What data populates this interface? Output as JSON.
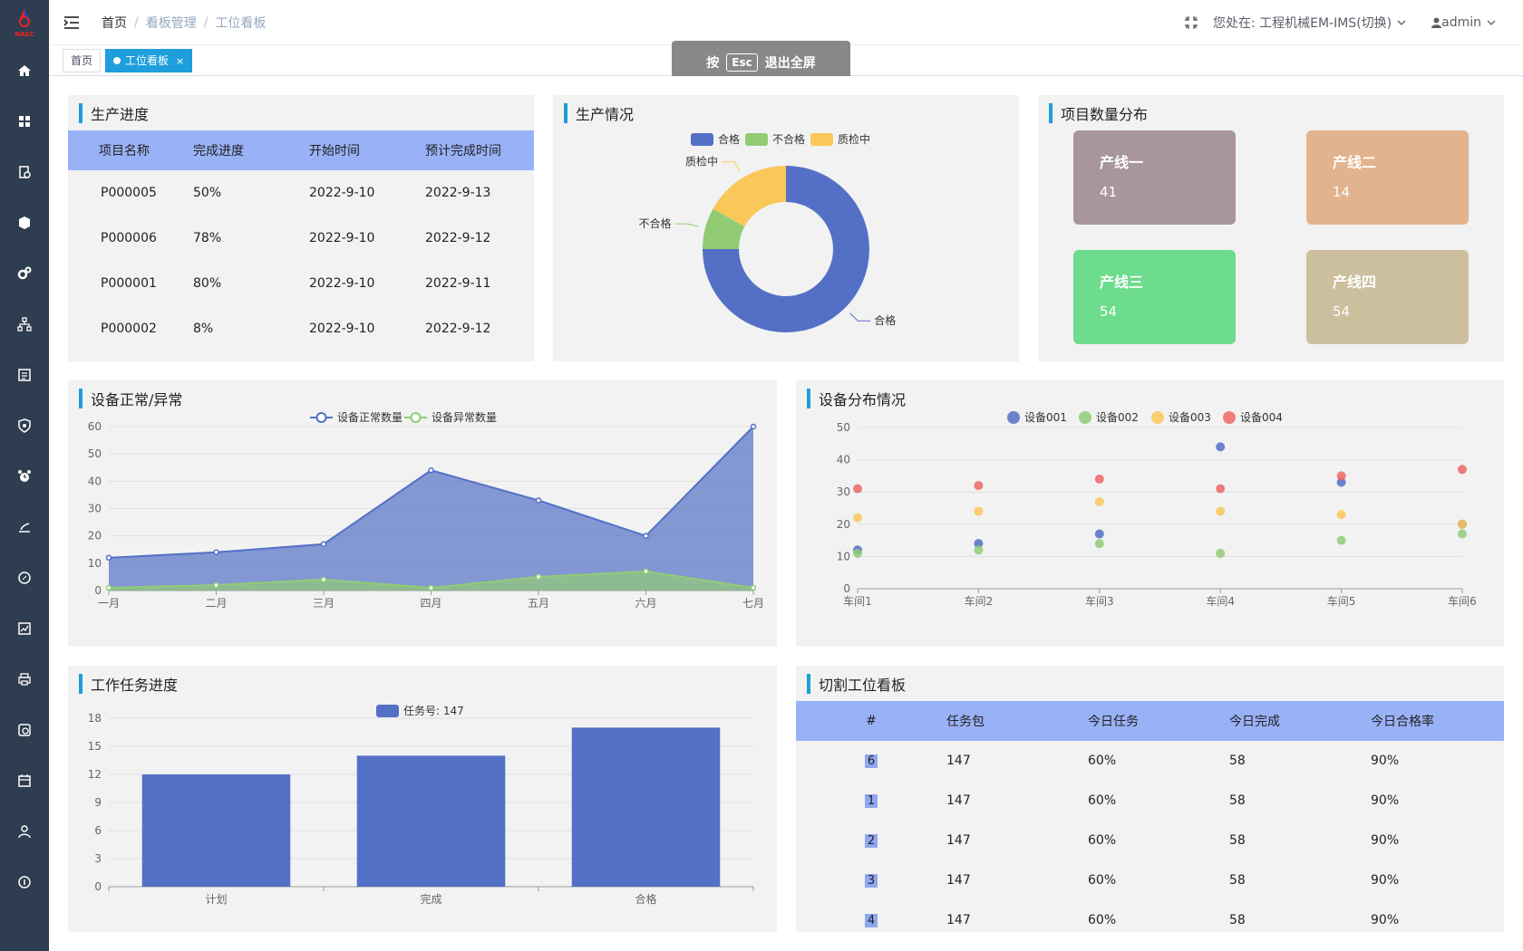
{
  "header": {
    "breadcrumb": [
      "首页",
      "看板管理",
      "工位看板"
    ],
    "location_label": "您处在: 工程机械EM-IMS(切换)",
    "user": "admin"
  },
  "tags": [
    {
      "label": "首页",
      "active": false
    },
    {
      "label": "工位看板",
      "active": true,
      "close": "×"
    }
  ],
  "esc_tip": {
    "before": "按",
    "key": "Esc",
    "after": "退出全屏"
  },
  "icons": [
    "hamburger-icon",
    "fullscreen-exit-icon",
    "chevron-down-icon",
    "user-icon",
    "home-icon",
    "dashboard-icon",
    "document-icon",
    "box-icon",
    "gears-icon",
    "network-icon",
    "report-icon",
    "shield-icon",
    "alarm-icon",
    "tool-icon",
    "compass-icon",
    "chart-icon",
    "printer-icon",
    "disk-icon",
    "calendar-icon",
    "person-icon",
    "about-icon"
  ],
  "colors": {
    "accent": "#1e9fdb",
    "sidebar": "#2e3d4f",
    "series_blue": "#5470c6",
    "series_green": "#91cc75",
    "series_yellow": "#fac858",
    "series_red": "#ee6666"
  },
  "progress": {
    "title": "生产进度",
    "columns": [
      "项目名称",
      "完成进度",
      "开始时间",
      "预计完成时间"
    ],
    "rows": [
      [
        "P000005",
        "50%",
        "2022-9-10",
        "2022-9-13"
      ],
      [
        "P000006",
        "78%",
        "2022-9-10",
        "2022-9-12"
      ],
      [
        "P000001",
        "80%",
        "2022-9-10",
        "2022-9-11"
      ],
      [
        "P000002",
        "8%",
        "2022-9-10",
        "2022-9-12"
      ]
    ]
  },
  "production": {
    "title": "生产情况"
  },
  "distribution": {
    "title": "项目数量分布",
    "cards": [
      {
        "name": "产线一",
        "value": "41",
        "color": "#a8969a"
      },
      {
        "name": "产线二",
        "value": "14",
        "color": "#e2b38c"
      },
      {
        "name": "产线三",
        "value": "54",
        "color": "#6ddc8c"
      },
      {
        "name": "产线四",
        "value": "54",
        "color": "#cbbf9e"
      }
    ]
  },
  "equipment_status": {
    "title": "设备正常/异常"
  },
  "equipment_dist": {
    "title": "设备分布情况"
  },
  "task_progress": {
    "title": "工作任务进度"
  },
  "cutting": {
    "title": "切割工位看板",
    "columns": [
      "#",
      "任务包",
      "今日任务",
      "今日完成",
      "今日合格率"
    ],
    "rows": [
      [
        "6",
        "147",
        "60%",
        "58",
        "90%"
      ],
      [
        "1",
        "147",
        "60%",
        "58",
        "90%"
      ],
      [
        "2",
        "147",
        "60%",
        "58",
        "90%"
      ],
      [
        "3",
        "147",
        "60%",
        "58",
        "90%"
      ],
      [
        "4",
        "147",
        "60%",
        "58",
        "90%"
      ]
    ]
  },
  "chart_data": [
    {
      "type": "pie",
      "donut": true,
      "legend": [
        "合格",
        "不合格",
        "质检中"
      ],
      "legend_placement": "top",
      "slices": [
        {
          "name": "合格",
          "value": 75,
          "color": "#5470c6"
        },
        {
          "name": "不合格",
          "value": 8,
          "color": "#91cc75"
        },
        {
          "name": "质检中",
          "value": 17,
          "color": "#fac858"
        }
      ]
    },
    {
      "type": "area",
      "categories": [
        "一月",
        "二月",
        "三月",
        "四月",
        "五月",
        "六月",
        "七月"
      ],
      "ylim": [
        0,
        60
      ],
      "yticks": [
        0,
        10,
        20,
        30,
        40,
        50,
        60
      ],
      "legend_placement": "top",
      "series": [
        {
          "name": "设备正常数量",
          "values": [
            12,
            14,
            17,
            44,
            33,
            20,
            60
          ],
          "color": "#5470c6"
        },
        {
          "name": "设备异常数量",
          "values": [
            1,
            2,
            4,
            1,
            5,
            7,
            1
          ],
          "color": "#91cc75"
        }
      ]
    },
    {
      "type": "scatter",
      "categories": [
        "车间1",
        "车间2",
        "车间3",
        "车间4",
        "车间5",
        "车间6"
      ],
      "ylim": [
        0,
        50
      ],
      "yticks": [
        0,
        10,
        20,
        30,
        40,
        50
      ],
      "legend_placement": "top",
      "series": [
        {
          "name": "设备001",
          "values": [
            12,
            14,
            17,
            44,
            33,
            20
          ],
          "color": "#5470c6"
        },
        {
          "name": "设备002",
          "values": [
            11,
            12,
            14,
            11,
            15,
            17
          ],
          "color": "#91cc75"
        },
        {
          "name": "设备003",
          "values": [
            22,
            24,
            27,
            24,
            23,
            20
          ],
          "color": "#fac858"
        },
        {
          "name": "设备004",
          "values": [
            31,
            32,
            34,
            31,
            35,
            37
          ],
          "color": "#ee6666"
        }
      ]
    },
    {
      "type": "bar",
      "categories": [
        "计划",
        "完成",
        "合格"
      ],
      "ylim": [
        0,
        18
      ],
      "yticks": [
        0,
        3,
        6,
        9,
        12,
        15,
        18
      ],
      "legend_placement": "top",
      "series": [
        {
          "name": "任务号: 147",
          "values": [
            12,
            14,
            17
          ],
          "color": "#5470c6"
        }
      ]
    }
  ]
}
